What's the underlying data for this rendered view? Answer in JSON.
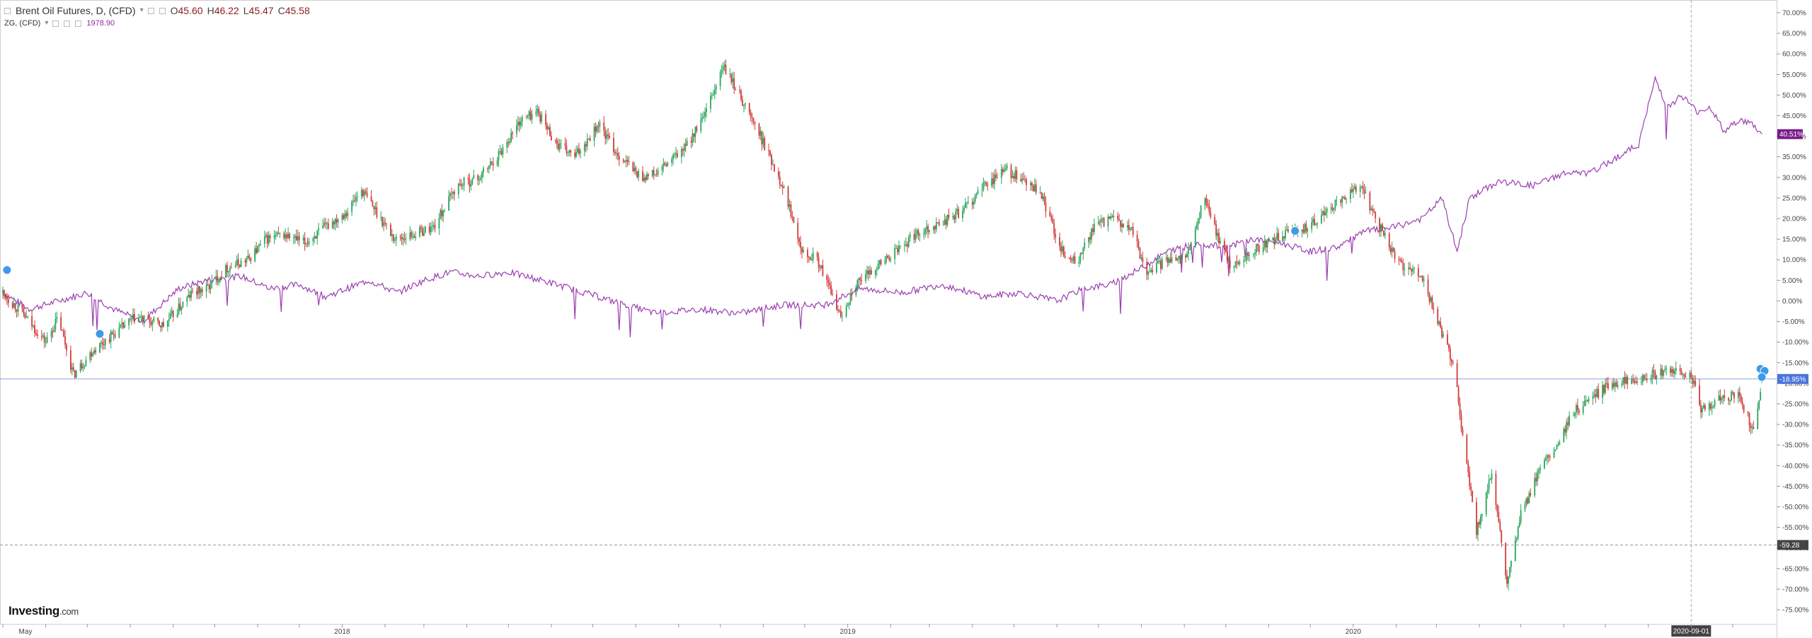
{
  "legend": {
    "main_title": "Brent Oil Futures, D, (CFD)",
    "open_label": "O",
    "open": "45.60",
    "high_label": "H",
    "high": "46.22",
    "low_label": "L",
    "low": "45.47",
    "close_label": "C",
    "close": "45.58",
    "compare_title": "ZG, (CFD)",
    "compare_value": "1978.90"
  },
  "brand": {
    "name": "Investing",
    "suffix": ".com"
  },
  "colors": {
    "up": "#26a65b",
    "down": "#d13b3b",
    "compare": "#9a3fb0",
    "last_line": "#8aa6e0",
    "last_badge": "#4a72d9",
    "compare_badge": "#7a1d8a",
    "dashed_badge": "#444444"
  },
  "chart_data": {
    "type": "line",
    "title": "",
    "yaxis": {
      "unit": "%",
      "min": -75,
      "max": 70,
      "step": 5,
      "side": "right"
    },
    "x_range": [
      "2017-05-01",
      "2020-10-25"
    ],
    "x_tick_labels": [
      {
        "x": "2017-05-01",
        "label": "May"
      },
      {
        "x": "2018-01-01",
        "label": "2018"
      },
      {
        "x": "2019-01-01",
        "label": "2019"
      },
      {
        "x": "2020-01-01",
        "label": "2020"
      }
    ],
    "crosshair": {
      "x": "2020-09-01",
      "label": "2020-09-01"
    },
    "price_lines": [
      {
        "y": -18.95,
        "label": "-18.95%",
        "style": "solid"
      },
      {
        "y": -59.28,
        "label": "-59.28",
        "style": "dashed"
      }
    ],
    "series": [
      {
        "name": "Brent Oil Futures, D, (CFD)",
        "kind": "candlestick",
        "points": [
          [
            "2017-05-01",
            2
          ],
          [
            "2017-05-15",
            -3
          ],
          [
            "2017-06-01",
            -10
          ],
          [
            "2017-06-10",
            -4
          ],
          [
            "2017-06-21",
            -18
          ],
          [
            "2017-07-05",
            -12
          ],
          [
            "2017-07-20",
            -8
          ],
          [
            "2017-08-05",
            -4
          ],
          [
            "2017-08-25",
            -6
          ],
          [
            "2017-09-15",
            2
          ],
          [
            "2017-09-25",
            3
          ],
          [
            "2017-10-10",
            8
          ],
          [
            "2017-10-25",
            10
          ],
          [
            "2017-11-07",
            15
          ],
          [
            "2017-11-20",
            16
          ],
          [
            "2017-12-05",
            14
          ],
          [
            "2017-12-20",
            18
          ],
          [
            "2018-01-05",
            22
          ],
          [
            "2018-01-15",
            27
          ],
          [
            "2018-02-08",
            15
          ],
          [
            "2018-02-20",
            16
          ],
          [
            "2018-03-08",
            18
          ],
          [
            "2018-03-25",
            28
          ],
          [
            "2018-04-10",
            30
          ],
          [
            "2018-04-25",
            36
          ],
          [
            "2018-05-10",
            44
          ],
          [
            "2018-05-22",
            46
          ],
          [
            "2018-06-05",
            38
          ],
          [
            "2018-06-18",
            35
          ],
          [
            "2018-07-05",
            43
          ],
          [
            "2018-07-18",
            36
          ],
          [
            "2018-08-05",
            30
          ],
          [
            "2018-08-16",
            31
          ],
          [
            "2018-09-05",
            37
          ],
          [
            "2018-09-20",
            45
          ],
          [
            "2018-10-03",
            57
          ],
          [
            "2018-10-15",
            50
          ],
          [
            "2018-10-30",
            40
          ],
          [
            "2018-11-15",
            28
          ],
          [
            "2018-11-30",
            12
          ],
          [
            "2018-12-10",
            10
          ],
          [
            "2018-12-20",
            2
          ],
          [
            "2018-12-27",
            -4
          ],
          [
            "2019-01-05",
            3
          ],
          [
            "2019-01-20",
            8
          ],
          [
            "2019-02-05",
            12
          ],
          [
            "2019-02-22",
            17
          ],
          [
            "2019-03-10",
            19
          ],
          [
            "2019-03-25",
            22
          ],
          [
            "2019-04-10",
            28
          ],
          [
            "2019-04-25",
            32
          ],
          [
            "2019-05-08",
            29
          ],
          [
            "2019-05-20",
            26
          ],
          [
            "2019-06-05",
            12
          ],
          [
            "2019-06-15",
            9
          ],
          [
            "2019-06-28",
            18
          ],
          [
            "2019-07-10",
            20
          ],
          [
            "2019-07-25",
            17
          ],
          [
            "2019-08-05",
            7
          ],
          [
            "2019-08-20",
            10
          ],
          [
            "2019-09-05",
            12
          ],
          [
            "2019-09-15",
            25
          ],
          [
            "2019-09-25",
            16
          ],
          [
            "2019-10-05",
            8
          ],
          [
            "2019-10-20",
            12
          ],
          [
            "2019-11-05",
            15
          ],
          [
            "2019-11-20",
            17
          ],
          [
            "2019-12-05",
            19
          ],
          [
            "2019-12-20",
            24
          ],
          [
            "2020-01-06",
            28
          ],
          [
            "2020-01-20",
            18
          ],
          [
            "2020-02-05",
            8
          ],
          [
            "2020-02-20",
            6
          ],
          [
            "2020-03-05",
            -8
          ],
          [
            "2020-03-15",
            -17
          ],
          [
            "2020-03-19",
            -31
          ],
          [
            "2020-03-30",
            -56
          ],
          [
            "2020-04-10",
            -42
          ],
          [
            "2020-04-21",
            -69
          ],
          [
            "2020-05-01",
            -52
          ],
          [
            "2020-05-15",
            -41
          ],
          [
            "2020-05-28",
            -35
          ],
          [
            "2020-06-08",
            -27
          ],
          [
            "2020-06-20",
            -24
          ],
          [
            "2020-07-05",
            -20
          ],
          [
            "2020-07-20",
            -19
          ],
          [
            "2020-08-05",
            -18
          ],
          [
            "2020-08-20",
            -17
          ],
          [
            "2020-09-01",
            -18
          ],
          [
            "2020-09-08",
            -27
          ],
          [
            "2020-09-20",
            -24
          ],
          [
            "2020-10-05",
            -23
          ],
          [
            "2020-10-12",
            -28
          ],
          [
            "2020-10-16",
            -32
          ],
          [
            "2020-10-22",
            -18.95
          ]
        ]
      },
      {
        "name": "ZG, (CFD)",
        "kind": "line",
        "points": [
          [
            "2017-05-01",
            2
          ],
          [
            "2017-05-20",
            -2
          ],
          [
            "2017-06-10",
            0
          ],
          [
            "2017-07-01",
            2
          ],
          [
            "2017-07-20",
            -2
          ],
          [
            "2017-08-10",
            -5
          ],
          [
            "2017-09-05",
            3
          ],
          [
            "2017-09-25",
            5
          ],
          [
            "2017-10-20",
            6
          ],
          [
            "2017-11-10",
            3
          ],
          [
            "2017-12-01",
            4
          ],
          [
            "2017-12-20",
            1
          ],
          [
            "2018-01-20",
            5
          ],
          [
            "2018-02-10",
            2
          ],
          [
            "2018-03-01",
            5
          ],
          [
            "2018-03-20",
            7
          ],
          [
            "2018-04-10",
            6
          ],
          [
            "2018-05-01",
            7
          ],
          [
            "2018-05-25",
            5
          ],
          [
            "2018-06-15",
            3
          ],
          [
            "2018-07-15",
            0
          ],
          [
            "2018-08-15",
            -3
          ],
          [
            "2018-09-15",
            -2
          ],
          [
            "2018-10-15",
            -3
          ],
          [
            "2018-11-15",
            -1
          ],
          [
            "2018-12-15",
            -1
          ],
          [
            "2019-01-10",
            3
          ],
          [
            "2019-02-10",
            2
          ],
          [
            "2019-03-10",
            4
          ],
          [
            "2019-04-10",
            1
          ],
          [
            "2019-05-05",
            2
          ],
          [
            "2019-06-01",
            0
          ],
          [
            "2019-06-20",
            3
          ],
          [
            "2019-07-10",
            4
          ],
          [
            "2019-08-01",
            8
          ],
          [
            "2019-08-20",
            12
          ],
          [
            "2019-09-10",
            14
          ],
          [
            "2019-10-01",
            13
          ],
          [
            "2019-10-20",
            15
          ],
          [
            "2019-11-10",
            14
          ],
          [
            "2019-12-01",
            12
          ],
          [
            "2019-12-20",
            13
          ],
          [
            "2020-01-10",
            17
          ],
          [
            "2020-02-01",
            18
          ],
          [
            "2020-02-20",
            20
          ],
          [
            "2020-03-05",
            25
          ],
          [
            "2020-03-16",
            12
          ],
          [
            "2020-03-25",
            25
          ],
          [
            "2020-04-15",
            29
          ],
          [
            "2020-05-10",
            28
          ],
          [
            "2020-06-01",
            31
          ],
          [
            "2020-06-20",
            31
          ],
          [
            "2020-07-10",
            35
          ],
          [
            "2020-07-25",
            38
          ],
          [
            "2020-08-06",
            54
          ],
          [
            "2020-08-15",
            47
          ],
          [
            "2020-08-25",
            50
          ],
          [
            "2020-09-05",
            46
          ],
          [
            "2020-09-15",
            47
          ],
          [
            "2020-09-25",
            41
          ],
          [
            "2020-10-05",
            44
          ],
          [
            "2020-10-15",
            43
          ],
          [
            "2020-10-22",
            40.51
          ]
        ]
      }
    ]
  }
}
